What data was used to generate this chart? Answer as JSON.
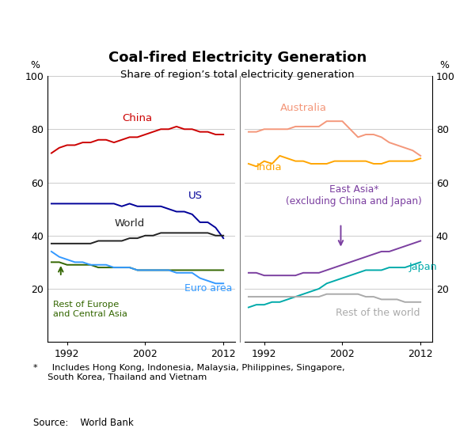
{
  "title": "Coal-fired Electricity Generation",
  "subtitle": "Share of region’s total electricity generation",
  "ylabel_left": "%",
  "ylabel_right": "%",
  "footnote": "*     Includes Hong Kong, Indonesia, Malaysia, Philippines, Singapore,\n     South Korea, Thailand and Vietnam",
  "source": "Source:    World Bank",
  "ylim": [
    0,
    100
  ],
  "yticks": [
    0,
    20,
    40,
    60,
    80,
    100
  ],
  "years": [
    1990,
    1991,
    1992,
    1993,
    1994,
    1995,
    1996,
    1997,
    1998,
    1999,
    2000,
    2001,
    2002,
    2003,
    2004,
    2005,
    2006,
    2007,
    2008,
    2009,
    2010,
    2011,
    2012
  ],
  "china": [
    71,
    73,
    74,
    74,
    75,
    75,
    76,
    76,
    75,
    76,
    77,
    77,
    78,
    79,
    80,
    80,
    81,
    80,
    80,
    79,
    79,
    78,
    78
  ],
  "us": [
    52,
    52,
    52,
    52,
    52,
    52,
    52,
    52,
    52,
    51,
    52,
    51,
    51,
    51,
    51,
    50,
    49,
    49,
    48,
    45,
    45,
    43,
    39
  ],
  "world": [
    37,
    37,
    37,
    37,
    37,
    37,
    38,
    38,
    38,
    38,
    39,
    39,
    40,
    40,
    41,
    41,
    41,
    41,
    41,
    41,
    41,
    40,
    40
  ],
  "rest_europe": [
    30,
    30,
    29,
    29,
    29,
    29,
    28,
    28,
    28,
    28,
    28,
    27,
    27,
    27,
    27,
    27,
    27,
    27,
    27,
    27,
    27,
    27,
    27
  ],
  "euro_area": [
    34,
    32,
    31,
    30,
    30,
    29,
    29,
    29,
    28,
    28,
    28,
    27,
    27,
    27,
    27,
    27,
    26,
    26,
    26,
    24,
    23,
    22,
    22
  ],
  "australia": [
    79,
    79,
    80,
    80,
    80,
    80,
    81,
    81,
    81,
    81,
    83,
    83,
    83,
    80,
    77,
    78,
    78,
    77,
    75,
    74,
    73,
    72,
    70
  ],
  "india": [
    67,
    66,
    68,
    67,
    70,
    69,
    68,
    68,
    67,
    67,
    67,
    68,
    68,
    68,
    68,
    68,
    67,
    67,
    68,
    68,
    68,
    68,
    69
  ],
  "east_asia": [
    26,
    26,
    25,
    25,
    25,
    25,
    25,
    26,
    26,
    26,
    27,
    28,
    29,
    30,
    31,
    32,
    33,
    34,
    34,
    35,
    36,
    37,
    38
  ],
  "japan": [
    13,
    14,
    14,
    15,
    15,
    16,
    17,
    18,
    19,
    20,
    22,
    23,
    24,
    25,
    26,
    27,
    27,
    27,
    28,
    28,
    28,
    29,
    30
  ],
  "rest_world": [
    17,
    17,
    17,
    17,
    17,
    17,
    17,
    17,
    17,
    17,
    18,
    18,
    18,
    18,
    18,
    17,
    17,
    16,
    16,
    16,
    15,
    15,
    15
  ],
  "colors": {
    "china": "#cc0000",
    "us": "#000099",
    "world": "#222222",
    "rest_europe": "#336600",
    "euro_area": "#3399ff",
    "australia": "#f4977a",
    "india": "#ffa500",
    "east_asia": "#7b3fa0",
    "japan": "#00aaaa",
    "rest_world": "#aaaaaa"
  },
  "xticks": [
    1992,
    2002,
    2012
  ],
  "xlim": [
    1989.5,
    2013.5
  ]
}
